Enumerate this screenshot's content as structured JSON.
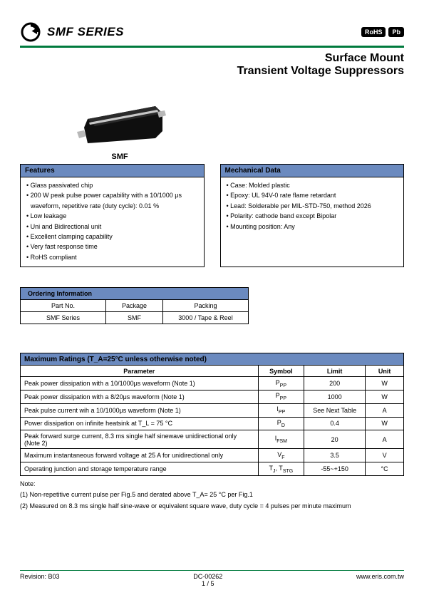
{
  "header": {
    "series_title": "SMF SERIES",
    "badges": [
      "RoHS",
      "Pb"
    ],
    "subtitle_line1": "Surface Mount",
    "subtitle_line2": "Transient Voltage Suppressors"
  },
  "product": {
    "label": "SMF",
    "image_colors": {
      "body": "#1a1a1a",
      "stripe": "#c8c8c8",
      "lead": "#b8b8b8"
    }
  },
  "features": {
    "title": "Features",
    "items": [
      "Glass passivated chip",
      "200 W peak pulse power capability with a 10/1000 μs waveform, repetitive rate (duty cycle): 0.01 %",
      "Low leakage",
      "Uni and Bidirectional unit",
      "Excellent clamping capability",
      "Very fast response time",
      "RoHS compliant"
    ]
  },
  "mechanical": {
    "title": "Mechanical Data",
    "items": [
      "Case: Molded plastic",
      "Epoxy: UL 94V-0 rate flame retardant",
      "Lead: Solderable per MIL-STD-750, method 2026",
      "Polarity: cathode band except Bipolar",
      "Mounting position: Any"
    ]
  },
  "ordering": {
    "title": "Ordering Information",
    "columns": [
      "Part No.",
      "Package",
      "Packing"
    ],
    "row": [
      "SMF Series",
      "SMF",
      "3000 / Tape & Reel"
    ]
  },
  "max_ratings": {
    "title": "Maximum Ratings (T_A=25°C unless otherwise noted)",
    "columns": [
      "Parameter",
      "Symbol",
      "Limit",
      "Unit"
    ],
    "rows": [
      {
        "param": "Peak power dissipation with a 10/1000μs waveform (Note 1)",
        "symbol": "P_PP",
        "limit": "200",
        "unit": "W"
      },
      {
        "param": "Peak power dissipation with a 8/20μs waveform (Note 1)",
        "symbol": "P_PP",
        "limit": "1000",
        "unit": "W"
      },
      {
        "param": "Peak pulse current wih a 10/1000μs waveform (Note 1)",
        "symbol": "I_PP",
        "limit": "See Next Table",
        "unit": "A"
      },
      {
        "param": "Power dissipation on infinite heatsink at T_L = 75 °C",
        "symbol": "P_D",
        "limit": "0.4",
        "unit": "W"
      },
      {
        "param": "Peak forward surge current, 8.3 ms single half sinewave unidirectional only (Note 2)",
        "symbol": "I_FSM",
        "limit": "20",
        "unit": "A"
      },
      {
        "param": "Maximum instantaneous forward voltage at 25 A for unidirectional only",
        "symbol": "V_F",
        "limit": "3.5",
        "unit": "V"
      },
      {
        "param": "Operating junction and storage temperature range",
        "symbol": "T_J, T_STG",
        "limit": "-55~+150",
        "unit": "°C"
      }
    ]
  },
  "notes": {
    "label": "Note:",
    "items": [
      "(1) Non-repetitive current pulse per Fig.5 and derated above T_A= 25 °C per Fig.1",
      "(2) Measured on 8.3 ms single half sine-wave or equivalent square wave, duty cycle = 4 pulses per minute maximum"
    ]
  },
  "footer": {
    "revision": "Revision: B03",
    "doc": "DC-00262",
    "page": "1 / 5",
    "url": "www.eris.com.tw"
  },
  "colors": {
    "accent_green": "#007a3d",
    "header_blue": "#6b8abf"
  }
}
